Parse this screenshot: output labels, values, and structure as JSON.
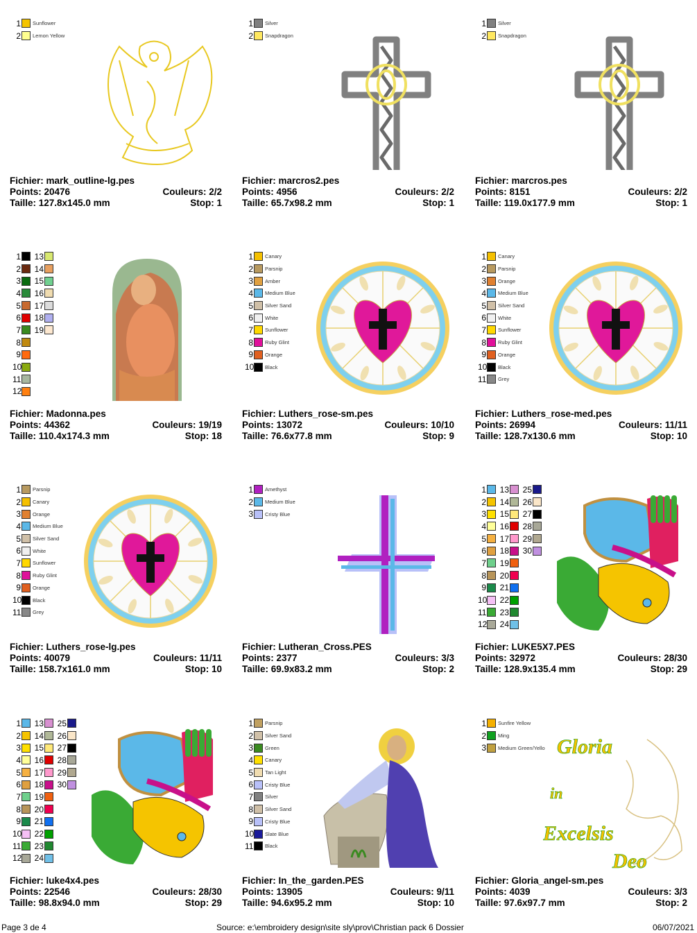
{
  "designs": [
    {
      "file": "mark_outline-lg.pes",
      "points": "20476",
      "colors": "2/2",
      "size": "127.8x145.0 mm",
      "stop": "1",
      "image": "lion-outline",
      "swatches": [
        [
          "#f5c400",
          "Sunflower"
        ],
        [
          "#ffff90",
          "Lemon Yellow"
        ]
      ]
    },
    {
      "file": "marcros2.pes",
      "points": "4956",
      "colors": "2/2",
      "size": "65.7x98.2 mm",
      "stop": "1",
      "image": "celtic-cross",
      "swatches": [
        [
          "#808080",
          "Silver"
        ],
        [
          "#ffe860",
          "Snapdragon"
        ]
      ]
    },
    {
      "file": "marcros.pes",
      "points": "8151",
      "colors": "2/2",
      "size": "119.0x177.9 mm",
      "stop": "1",
      "image": "celtic-cross",
      "swatches": [
        [
          "#808080",
          "Silver"
        ],
        [
          "#ffe860",
          "Snapdragon"
        ]
      ]
    },
    {
      "file": "Madonna.pes",
      "points": "44362",
      "colors": "19/19",
      "size": "110.4x174.3 mm",
      "stop": "18",
      "image": "madonna",
      "swatches": [
        [
          "#000000"
        ],
        [
          "#6b2a10"
        ],
        [
          "#0a6a10"
        ],
        [
          "#2a8a3a"
        ],
        [
          "#c86a30"
        ],
        [
          "#e00000"
        ],
        [
          "#3a8a20"
        ],
        [
          "#c08a10"
        ],
        [
          "#ff6a10"
        ],
        [
          "#8aaa10"
        ],
        [
          "#a8b8a0"
        ],
        [
          "#ff8010"
        ],
        [
          "#d8e870"
        ],
        [
          "#e8a060"
        ],
        [
          "#70d090"
        ],
        [
          "#f0dcb0"
        ],
        [
          "#dcdcdc"
        ],
        [
          "#b0b0f0"
        ],
        [
          "#fde8d0"
        ]
      ]
    },
    {
      "file": "Luthers_rose-sm.pes",
      "points": "13072",
      "colors": "10/10",
      "size": "76.6x77.8 mm",
      "stop": "9",
      "image": "luther-rose",
      "swatches": [
        [
          "#f5c000",
          "Canary"
        ],
        [
          "#b89a60",
          "Parsnip"
        ],
        [
          "#e0a040",
          "Amber"
        ],
        [
          "#5bb8e8",
          "Medium Blue"
        ],
        [
          "#d0c0a8",
          "Silver Sand"
        ],
        [
          "#f0f0f0",
          "White"
        ],
        [
          "#ffd800",
          "Sunflower"
        ],
        [
          "#e0109a",
          "Ruby Glint"
        ],
        [
          "#e06020",
          "Orange"
        ],
        [
          "#000000",
          "Black"
        ]
      ]
    },
    {
      "file": "Luthers_rose-med.pes",
      "points": "26994",
      "colors": "11/11",
      "size": "128.7x130.6 mm",
      "stop": "10",
      "image": "luther-rose",
      "swatches": [
        [
          "#f5c000",
          "Canary"
        ],
        [
          "#b89a60",
          "Parsnip"
        ],
        [
          "#e08030",
          "Orange"
        ],
        [
          "#5bb8e8",
          "Medium Blue"
        ],
        [
          "#d0c0a8",
          "Silver Sand"
        ],
        [
          "#f0f0f0",
          "White"
        ],
        [
          "#ffd800",
          "Sunflower"
        ],
        [
          "#e0109a",
          "Ruby Glint"
        ],
        [
          "#e06020",
          "Orange"
        ],
        [
          "#000000",
          "Black"
        ],
        [
          "#888888",
          "Grey"
        ]
      ]
    },
    {
      "file": "Luthers_rose-lg.pes",
      "points": "40079",
      "colors": "11/11",
      "size": "158.7x161.0 mm",
      "stop": "10",
      "image": "luther-rose",
      "swatches": [
        [
          "#b89a60",
          "Parsnip"
        ],
        [
          "#f5c000",
          "Canary"
        ],
        [
          "#e08030",
          "Orange"
        ],
        [
          "#5bb8e8",
          "Medium Blue"
        ],
        [
          "#d0c0a8",
          "Silver Sand"
        ],
        [
          "#f0f0f0",
          "White"
        ],
        [
          "#ffd800",
          "Sunflower"
        ],
        [
          "#e0109a",
          "Ruby Glint"
        ],
        [
          "#e06020",
          "Orange"
        ],
        [
          "#000000",
          "Black"
        ],
        [
          "#888888",
          "Grey"
        ]
      ]
    },
    {
      "file": "Lutheran_Cross.PES",
      "points": "2377",
      "colors": "3/3",
      "size": "69.9x83.2 mm",
      "stop": "2",
      "image": "lutheran-cross",
      "swatches": [
        [
          "#b020c0",
          "Amethyst"
        ],
        [
          "#5bb8e8",
          "Medium Blue"
        ],
        [
          "#b8c0f8",
          "Cristy Blue"
        ]
      ]
    },
    {
      "file": "LUKE5X7.PES",
      "points": "32972",
      "colors": "28/30",
      "size": "128.9x135.4 mm",
      "stop": "29",
      "image": "luke-ox",
      "swatches": [
        [
          "#5bb8e8"
        ],
        [
          "#f5c400"
        ],
        [
          "#ffe000"
        ],
        [
          "#ffff99"
        ],
        [
          "#f5b041"
        ],
        [
          "#e0a040"
        ],
        [
          "#6fd08c"
        ],
        [
          "#b8955a"
        ],
        [
          "#1a8a4a"
        ],
        [
          "#f5c0f5"
        ],
        [
          "#3aaa35"
        ],
        [
          "#a8a898"
        ],
        [
          "#d890d0"
        ],
        [
          "#b0b898"
        ],
        [
          "#ffe97a"
        ],
        [
          "#e00000"
        ],
        [
          "#ff99cc"
        ],
        [
          "#c8108a"
        ],
        [
          "#f06010"
        ],
        [
          "#f00050"
        ],
        [
          "#1070f0"
        ],
        [
          "#00a000"
        ],
        [
          "#208830"
        ],
        [
          "#70c0e8"
        ],
        [
          "#1a1a8a"
        ],
        [
          "#fae6c8"
        ],
        [
          "#000000"
        ],
        [
          "#a8a898"
        ],
        [
          "#b0a890"
        ],
        [
          "#c090e0"
        ]
      ]
    },
    {
      "file": "luke4x4.pes",
      "points": "22546",
      "colors": "28/30",
      "size": "98.8x94.0 mm",
      "stop": "29",
      "image": "luke-ox",
      "swatches": [
        [
          "#5bb8e8"
        ],
        [
          "#f5c400"
        ],
        [
          "#ffe000"
        ],
        [
          "#ffff99"
        ],
        [
          "#f5b041"
        ],
        [
          "#e0a040"
        ],
        [
          "#6fd08c"
        ],
        [
          "#b8955a"
        ],
        [
          "#1a8a4a"
        ],
        [
          "#f5c0f5"
        ],
        [
          "#3aaa35"
        ],
        [
          "#a8a898"
        ],
        [
          "#d890d0"
        ],
        [
          "#b0b898"
        ],
        [
          "#ffe97a"
        ],
        [
          "#e00000"
        ],
        [
          "#ff99cc"
        ],
        [
          "#c8108a"
        ],
        [
          "#f06010"
        ],
        [
          "#f00050"
        ],
        [
          "#1070f0"
        ],
        [
          "#00a000"
        ],
        [
          "#208830"
        ],
        [
          "#70c0e8"
        ],
        [
          "#1a1a8a"
        ],
        [
          "#fae6c8"
        ],
        [
          "#000000"
        ],
        [
          "#a8a898"
        ],
        [
          "#b0a890"
        ],
        [
          "#c090e0"
        ]
      ]
    },
    {
      "file": "In_the_garden.PES",
      "points": "13905",
      "colors": "9/11",
      "size": "94.6x95.2 mm",
      "stop": "10",
      "image": "jesus-garden",
      "swatches": [
        [
          "#c0a060",
          "Parsnip"
        ],
        [
          "#d0c0a8",
          "Silver Sand"
        ],
        [
          "#3a8a20",
          "Green"
        ],
        [
          "#ffe000",
          "Canary"
        ],
        [
          "#f0dcb0",
          "Tan Light"
        ],
        [
          "#b8c0f8",
          "Cristy Blue"
        ],
        [
          "#808080",
          "Silver"
        ],
        [
          "#d0c0a8",
          "Silver Sand"
        ],
        [
          "#b8c0f8",
          "Cristy Blue"
        ],
        [
          "#1a1a9a",
          "Slate Blue"
        ],
        [
          "#000000",
          "Black"
        ]
      ]
    },
    {
      "file": "Gloria_angel-sm.pes",
      "points": "4039",
      "colors": "3/3",
      "size": "97.6x97.7 mm",
      "stop": "2",
      "image": "gloria-angel",
      "swatches": [
        [
          "#f5b000",
          "Sunfire Yellow"
        ],
        [
          "#10a020",
          "Ming"
        ],
        [
          "#c0a040",
          "Medium Green/Yello"
        ]
      ],
      "art_text": [
        "Gloria",
        "in",
        "Excelsis",
        "Deo"
      ]
    }
  ],
  "labels": {
    "file": "Fichier: ",
    "points": "Points: ",
    "colors": "Couleurs: ",
    "size": "Taille: ",
    "stop": "Stop: "
  },
  "footer": {
    "page": "Page 3 de 4",
    "source": "Source:  e:\\embroidery design\\site sly\\prov\\Christian pack 6 Dossier",
    "date": "06/07/2021"
  }
}
